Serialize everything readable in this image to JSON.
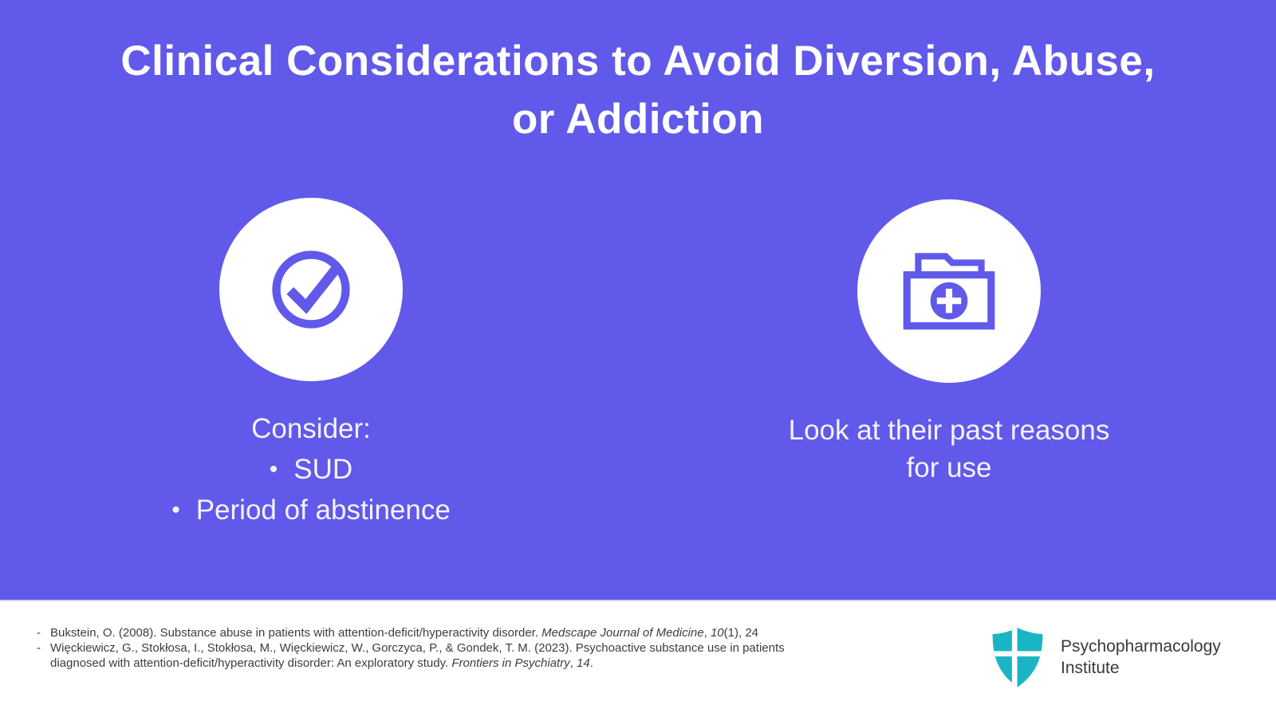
{
  "slide": {
    "title_lines": [
      "Clinical Considerations to Avoid Diversion, Abuse,",
      "or Addiction"
    ],
    "bullet_marker": "•",
    "left_column": {
      "icon": "check-circle-icon",
      "heading": "Consider:",
      "bullets": [
        "SUD",
        "Period of abstinence"
      ]
    },
    "right_column": {
      "icon": "folder-plus-icon",
      "lines": [
        "Look at their past reasons",
        "for use"
      ]
    }
  },
  "footer": {
    "reference_marker": "-",
    "references": [
      {
        "segments": [
          {
            "text": "Bukstein, O. (2008). Substance abuse in patients with attention-deficit/hyperactivity disorder. ",
            "italic": false
          },
          {
            "text": "Medscape Journal of Medicine",
            "italic": true
          },
          {
            "text": ", ",
            "italic": false
          },
          {
            "text": "10",
            "italic": true
          },
          {
            "text": "(1), 24",
            "italic": false
          }
        ]
      },
      {
        "segments": [
          {
            "text": "Więckiewicz, G., Stokłosa, I., Stokłosa, M., Więckiewicz, W., Gorczyca, P., & Gondek, T. M. (2023). Psychoactive substance use in patients diagnosed with attention-deficit/hyperactivity disorder: An exploratory study. ",
            "italic": false
          },
          {
            "text": "Frontiers in Psychiatry",
            "italic": true
          },
          {
            "text": ", ",
            "italic": false
          },
          {
            "text": "14",
            "italic": true
          },
          {
            "text": ".",
            "italic": false
          }
        ]
      }
    ],
    "logo": {
      "name_lines": [
        "Psychopharmacology",
        "Institute"
      ]
    }
  },
  "colors": {
    "background_purple": "#6159E9",
    "icon_purple": "#6159E9",
    "footer_background": "#FFFFFF",
    "title_text": "#FFFFFF",
    "body_text": "#F4F3FD",
    "reference_text": "#3D3D3D",
    "logo_text": "#3A3A3A",
    "logo_teal": "#1AB5C4"
  }
}
